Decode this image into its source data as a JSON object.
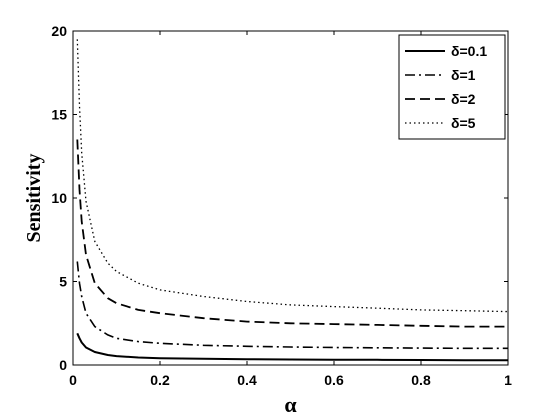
{
  "chart_data": {
    "type": "line",
    "xlabel": "α",
    "ylabel": "Sensitivity",
    "xlim": [
      0,
      1
    ],
    "ylim": [
      0,
      20
    ],
    "xticks": [
      "0",
      "0.2",
      "0.4",
      "0.6",
      "0.8",
      "1"
    ],
    "yticks": [
      "0",
      "5",
      "10",
      "15",
      "20"
    ],
    "grid": false,
    "legend_position": "top-right",
    "series": [
      {
        "name": "δ=0.1",
        "dash": "solid",
        "x": [
          0.01,
          0.015,
          0.02,
          0.03,
          0.05,
          0.08,
          0.1,
          0.15,
          0.2,
          0.3,
          0.4,
          0.5,
          0.6,
          0.7,
          0.8,
          0.9,
          1.0
        ],
        "y": [
          1.9,
          1.6,
          1.35,
          1.05,
          0.78,
          0.6,
          0.53,
          0.45,
          0.41,
          0.37,
          0.35,
          0.33,
          0.32,
          0.31,
          0.3,
          0.29,
          0.28
        ]
      },
      {
        "name": "δ=1",
        "dash": "dashdot",
        "x": [
          0.01,
          0.015,
          0.02,
          0.03,
          0.05,
          0.08,
          0.1,
          0.15,
          0.2,
          0.3,
          0.4,
          0.5,
          0.6,
          0.7,
          0.8,
          0.9,
          1.0
        ],
        "y": [
          6.2,
          4.9,
          4.1,
          3.1,
          2.3,
          1.8,
          1.6,
          1.4,
          1.3,
          1.18,
          1.12,
          1.08,
          1.05,
          1.03,
          1.01,
          1.0,
          1.0
        ]
      },
      {
        "name": "δ=2",
        "dash": "dashed",
        "x": [
          0.01,
          0.015,
          0.02,
          0.03,
          0.05,
          0.08,
          0.1,
          0.15,
          0.2,
          0.3,
          0.4,
          0.5,
          0.6,
          0.7,
          0.8,
          0.9,
          1.0
        ],
        "y": [
          13.5,
          10.5,
          8.6,
          6.6,
          4.9,
          4.0,
          3.7,
          3.3,
          3.1,
          2.8,
          2.6,
          2.5,
          2.45,
          2.4,
          2.35,
          2.3,
          2.3
        ]
      },
      {
        "name": "δ=5",
        "dash": "dotted",
        "x": [
          0.01,
          0.015,
          0.02,
          0.03,
          0.05,
          0.08,
          0.1,
          0.15,
          0.2,
          0.3,
          0.4,
          0.5,
          0.6,
          0.7,
          0.8,
          0.9,
          1.0
        ],
        "y": [
          19.5,
          15.5,
          12.7,
          9.8,
          7.4,
          6.1,
          5.6,
          4.9,
          4.5,
          4.1,
          3.8,
          3.6,
          3.5,
          3.4,
          3.3,
          3.25,
          3.2
        ]
      }
    ]
  }
}
